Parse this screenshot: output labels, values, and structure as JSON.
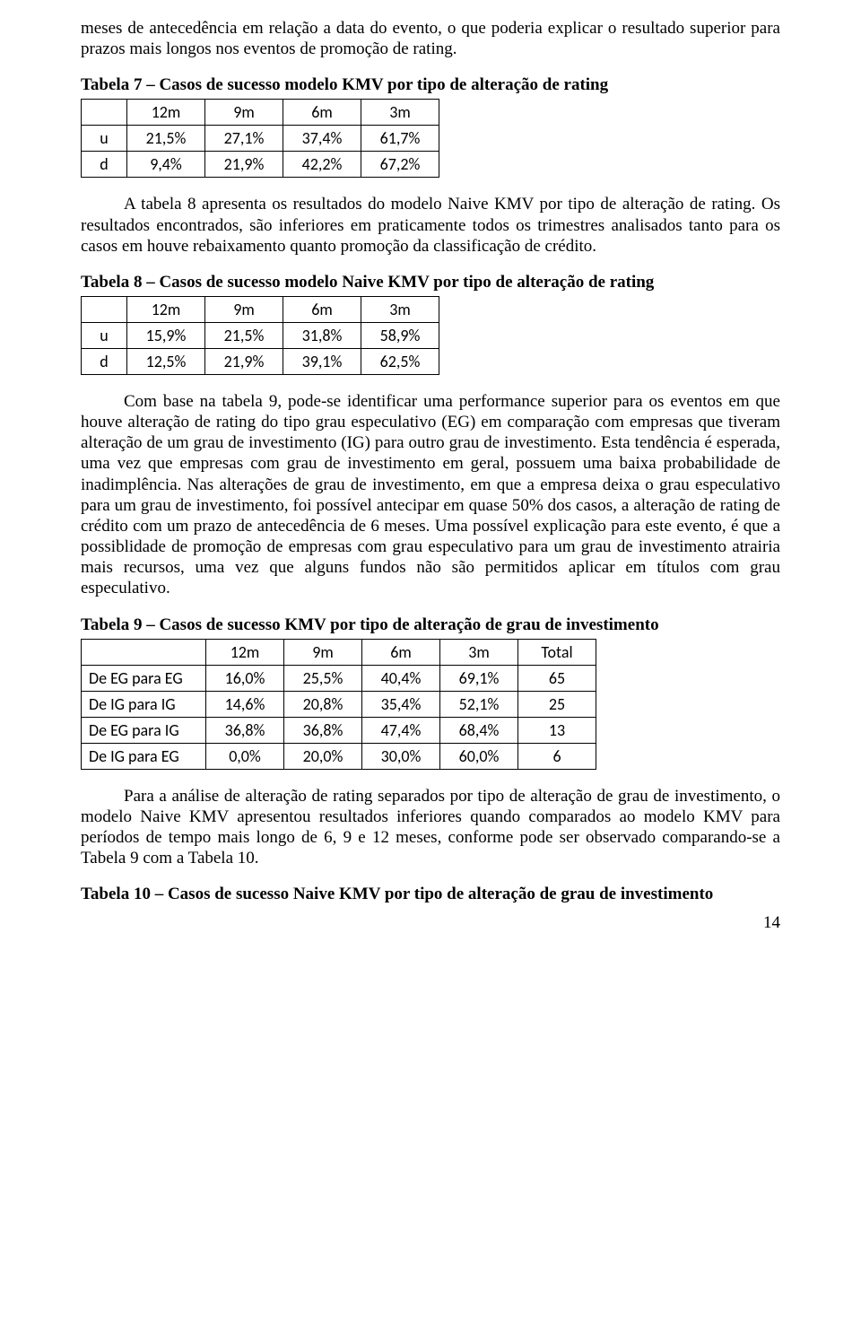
{
  "para1": "meses de antecedência em relação a data do evento, o que poderia explicar o resultado superior para prazos mais longos nos eventos de promoção de rating.",
  "table7": {
    "caption": "Tabela 7 – Casos de sucesso modelo KMV por tipo de alteração de rating",
    "headers": [
      "",
      "12m",
      "9m",
      "6m",
      "3m"
    ],
    "rows": [
      {
        "label": "u",
        "cells": [
          "21,5%",
          "27,1%",
          "37,4%",
          "61,7%"
        ]
      },
      {
        "label": "d",
        "cells": [
          "9,4%",
          "21,9%",
          "42,2%",
          "67,2%"
        ]
      }
    ]
  },
  "para2": "A tabela 8 apresenta os resultados do modelo Naive KMV por tipo de alteração de rating. Os  resultados encontrados, são inferiores em praticamente todos os trimestres analisados tanto para os casos em houve rebaixamento quanto promoção da classificação de crédito.",
  "table8": {
    "caption": "Tabela 8 – Casos de sucesso modelo Naive KMV por tipo de alteração de rating",
    "headers": [
      "",
      "12m",
      "9m",
      "6m",
      "3m"
    ],
    "rows": [
      {
        "label": "u",
        "cells": [
          "15,9%",
          "21,5%",
          "31,8%",
          "58,9%"
        ]
      },
      {
        "label": "d",
        "cells": [
          "12,5%",
          "21,9%",
          "39,1%",
          "62,5%"
        ]
      }
    ]
  },
  "para3": "Com base na tabela 9, pode-se identificar uma performance superior para os eventos em que houve alteração de rating do tipo grau especulativo (EG) em comparação com empresas que tiveram alteração de um grau de investimento (IG) para outro grau de investimento. Esta tendência é esperada, uma vez que empresas com grau de investimento em geral, possuem uma baixa probabilidade de inadimplência. Nas alterações de grau de investimento, em que a empresa deixa o grau especulativo para um grau de investimento, foi possível antecipar em quase 50% dos casos, a alteração de rating de crédito com um prazo de antecedência de 6 meses. Uma possível explicação para este evento, é que a possiblidade de promoção de empresas com grau especulativo para um grau de investimento atrairia mais recursos, uma vez que alguns fundos não são permitidos aplicar em títulos com grau especulativo.",
  "table9": {
    "caption": "Tabela 9 – Casos de sucesso KMV por tipo de alteração de grau de investimento",
    "headers": [
      "",
      "12m",
      "9m",
      "6m",
      "3m",
      "Total"
    ],
    "rows": [
      {
        "label": "De EG para EG",
        "cells": [
          "16,0%",
          "25,5%",
          "40,4%",
          "69,1%",
          "65"
        ]
      },
      {
        "label": "De IG para IG",
        "cells": [
          "14,6%",
          "20,8%",
          "35,4%",
          "52,1%",
          "25"
        ]
      },
      {
        "label": "De EG para IG",
        "cells": [
          "36,8%",
          "36,8%",
          "47,4%",
          "68,4%",
          "13"
        ]
      },
      {
        "label": "De IG para EG",
        "cells": [
          "0,0%",
          "20,0%",
          "30,0%",
          "60,0%",
          "6"
        ]
      }
    ]
  },
  "para4": "Para a análise de alteração de rating separados por tipo de alteração de grau de investimento, o modelo Naive KMV apresentou resultados inferiores quando comparados ao modelo KMV para períodos de tempo mais longo de 6, 9 e 12 meses, conforme pode ser observado comparando-se a Tabela 9 com a Tabela 10.",
  "table10_caption": "Tabela 10 – Casos de sucesso Naive KMV por tipo de alteração de grau de investimento",
  "pageNumber": "14"
}
